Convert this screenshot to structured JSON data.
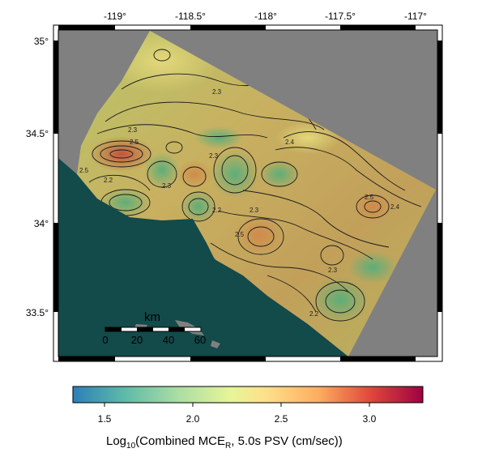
{
  "map": {
    "lon_ticks": [
      "-119°",
      "-118.5°",
      "-118°",
      "-117.5°",
      "-117°"
    ],
    "lat_ticks": [
      "35°",
      "34.5°",
      "34°",
      "33.5°"
    ],
    "background_color": "#808080",
    "ocean_color": "#134a4a"
  },
  "scale_bar": {
    "unit": "km",
    "ticks": [
      "0",
      "20",
      "40",
      "60"
    ]
  },
  "contour_labels": [
    "2.3",
    "2.3",
    "2.5",
    "2.5",
    "2.2",
    "2.3",
    "2.3",
    "2.3",
    "2.5",
    "2.4",
    "2.2",
    "2.5",
    "2.3",
    "2.2",
    "2.4"
  ],
  "colorbar": {
    "ticks": [
      "1.5",
      "2.0",
      "2.5",
      "3.0"
    ],
    "title_main": "Log",
    "title_sub10": "10",
    "title_mid": "(Combined MCE",
    "title_subR": "R",
    "title_end": ", 5.0s PSV (cm/sec))",
    "colors": [
      "#2b83ba",
      "#abdda4",
      "#ffffbf",
      "#fdae61",
      "#d7191c",
      "#9e0142"
    ]
  }
}
